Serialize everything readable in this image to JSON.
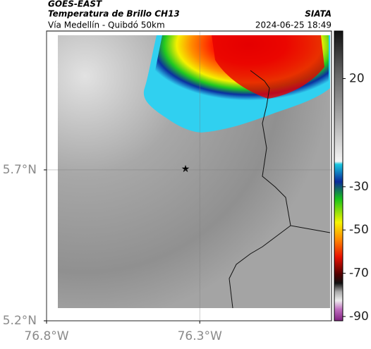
{
  "header": {
    "line1": "GOES-EAST",
    "title": "Temperatura de Brillo CH13",
    "subtitle": "Vía Medellín - Quibdó 50km",
    "source": "SIATA",
    "timestamp": "2024-06-25 18:49"
  },
  "map": {
    "xlim": [
      -76.8,
      -75.87
    ],
    "ylim": [
      5.2,
      6.16
    ],
    "xticks": [
      {
        "value": -76.8,
        "label": "76.8°W"
      },
      {
        "value": -76.3,
        "label": "76.3°W"
      }
    ],
    "yticks": [
      {
        "value": 5.7,
        "label": "5.7°N"
      },
      {
        "value": 5.2,
        "label": "5.2°N"
      }
    ],
    "grid": true
  },
  "colorbar": {
    "lim": [
      -92,
      42
    ],
    "ticks": [
      20,
      -30,
      -50,
      -70,
      -90
    ]
  }
}
